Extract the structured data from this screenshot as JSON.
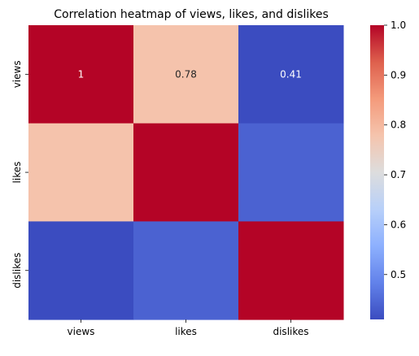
{
  "chart_data": {
    "type": "heatmap",
    "title": "Correlation heatmap of views, likes, and dislikes",
    "x_categories": [
      "views",
      "likes",
      "dislikes"
    ],
    "y_categories": [
      "views",
      "likes",
      "dislikes"
    ],
    "matrix": [
      [
        1.0,
        0.78,
        0.41
      ],
      [
        0.78,
        1.0,
        0.44
      ],
      [
        0.41,
        0.44,
        1.0
      ]
    ],
    "annotations": [
      [
        "1",
        "0.78",
        "0.41"
      ],
      [
        "",
        "",
        ""
      ],
      [
        "",
        "",
        ""
      ]
    ],
    "colormap": "coolwarm",
    "vmin": 0.41,
    "vmax": 1.0,
    "colorbar_ticks": [
      0.5,
      0.6,
      0.7,
      0.8,
      0.9,
      1.0
    ],
    "colorbar_tick_labels": [
      "0.5",
      "0.6",
      "0.7",
      "0.8",
      "0.9",
      "1.0"
    ],
    "colors": {
      "low": "#3b4cc0",
      "mid": "#dddddd",
      "high": "#b40426"
    }
  }
}
